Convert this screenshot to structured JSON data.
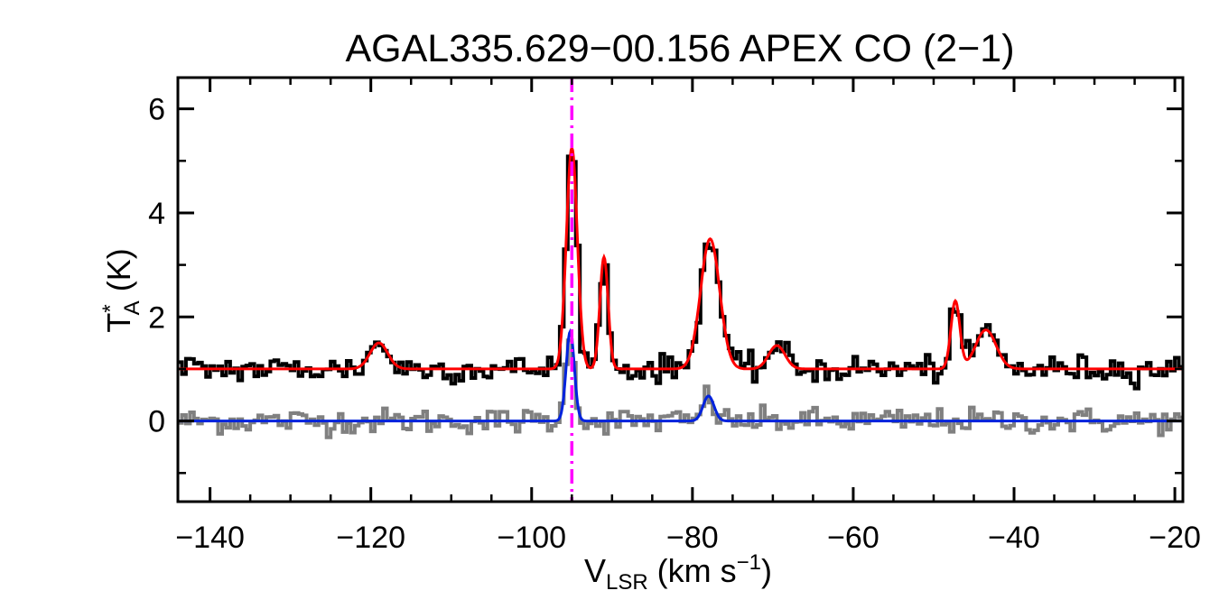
{
  "chart_data": {
    "type": "line",
    "title": "AGAL335.629−00.156  APEX CO (2−1)",
    "xlabel": {
      "main": "V",
      "sub": "LSR",
      "rest": " (km s",
      "sup": "−1",
      "close": ")"
    },
    "ylabel": {
      "main": "T",
      "sup": "*",
      "sub": "A",
      "rest": " (K)"
    },
    "xlim": [
      -144,
      -19
    ],
    "ylim": [
      -1.55,
      6.6
    ],
    "x_ticks": [
      -140,
      -120,
      -100,
      -80,
      -60,
      -40,
      -20
    ],
    "x_tick_labels": [
      "−140",
      "−120",
      "−100",
      "−80",
      "−60",
      "−40",
      "−20"
    ],
    "y_ticks": [
      0,
      2,
      4,
      6
    ],
    "y_tick_labels": [
      "0",
      "2",
      "4",
      "6"
    ],
    "grid": false,
    "vline": {
      "x": -95,
      "color": "#ff00ff",
      "style": "dash-dot"
    },
    "series": [
      {
        "role": "observed spectrum",
        "color": "#000000",
        "style": "steps",
        "baseline": 1.0,
        "noise_sigma": 0.13,
        "components": [
          {
            "center": -119.0,
            "amp": 0.5,
            "fwhm": 2.6
          },
          {
            "center": -95.0,
            "amp": 4.25,
            "fwhm": 1.6
          },
          {
            "center": -91.0,
            "amp": 2.15,
            "fwhm": 1.2
          },
          {
            "center": -77.8,
            "amp": 2.5,
            "fwhm": 2.8
          },
          {
            "center": -69.5,
            "amp": 0.45,
            "fwhm": 2.4
          },
          {
            "center": -47.3,
            "amp": 1.3,
            "fwhm": 1.3
          },
          {
            "center": -43.5,
            "amp": 0.75,
            "fwhm": 3.0
          }
        ]
      },
      {
        "role": "gaussian fit",
        "color": "#ff0000",
        "style": "line",
        "baseline": 1.0,
        "components": [
          {
            "center": -119.0,
            "amp": 0.5,
            "fwhm": 2.6
          },
          {
            "center": -95.0,
            "amp": 4.25,
            "fwhm": 1.6
          },
          {
            "center": -91.0,
            "amp": 2.15,
            "fwhm": 1.2
          },
          {
            "center": -77.8,
            "amp": 2.5,
            "fwhm": 2.8
          },
          {
            "center": -69.5,
            "amp": 0.45,
            "fwhm": 2.4
          },
          {
            "center": -47.3,
            "amp": 1.3,
            "fwhm": 1.3
          },
          {
            "center": -43.5,
            "amp": 0.75,
            "fwhm": 3.0
          }
        ]
      },
      {
        "role": "observed spectrum (lower)",
        "color": "#808080",
        "style": "steps",
        "baseline": 0.0,
        "noise_sigma": 0.12,
        "components": [
          {
            "center": -95.2,
            "amp": 1.8,
            "fwhm": 1.2
          },
          {
            "center": -78.0,
            "amp": 0.5,
            "fwhm": 1.6
          }
        ]
      },
      {
        "role": "gaussian fit (lower)",
        "color": "#0022dd",
        "style": "line",
        "baseline": 0.0,
        "components": [
          {
            "center": -95.2,
            "amp": 1.72,
            "fwhm": 1.2
          },
          {
            "center": -78.0,
            "amp": 0.48,
            "fwhm": 1.6
          }
        ]
      }
    ]
  }
}
